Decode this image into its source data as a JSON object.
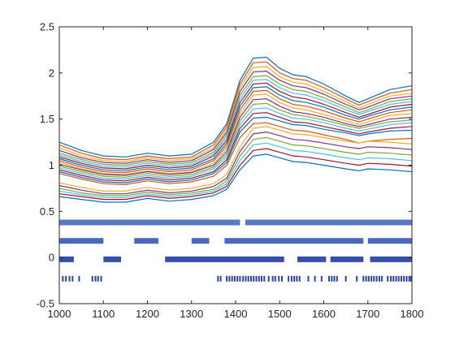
{
  "colors": {
    "axis": "#262626",
    "band1": "#5a78c8",
    "band2": "#4a68bf",
    "band3": "#3550a8",
    "band4": "#2a46a0"
  },
  "chart_data": {
    "type": "line",
    "title": "",
    "xlabel": "",
    "ylabel": "",
    "xlim": [
      1000,
      1800
    ],
    "ylim": [
      -0.5,
      2.5
    ],
    "grid": false,
    "legend": "none",
    "x_ticks": [
      "1000",
      "1100",
      "1200",
      "1300",
      "1400",
      "1500",
      "1600",
      "1700",
      "1800"
    ],
    "y_ticks": [
      "-0.5",
      "0",
      "0.5",
      "1",
      "1.5",
      "2",
      "2.5"
    ],
    "x": [
      1000,
      1050,
      1100,
      1150,
      1200,
      1250,
      1300,
      1350,
      1380,
      1410,
      1440,
      1470,
      1500,
      1530,
      1560,
      1600,
      1650,
      1680,
      1700,
      1750,
      1800
    ],
    "series": [
      {
        "group": "upper",
        "values": [
          1.25,
          1.16,
          1.1,
          1.09,
          1.13,
          1.1,
          1.12,
          1.25,
          1.45,
          1.92,
          2.16,
          2.17,
          2.05,
          1.98,
          1.96,
          1.88,
          1.75,
          1.68,
          1.72,
          1.82,
          1.86
        ]
      },
      {
        "group": "upper",
        "values": [
          1.22,
          1.13,
          1.07,
          1.06,
          1.1,
          1.07,
          1.09,
          1.22,
          1.42,
          1.88,
          2.11,
          2.12,
          2.0,
          1.94,
          1.92,
          1.84,
          1.72,
          1.65,
          1.69,
          1.78,
          1.82
        ]
      },
      {
        "group": "upper",
        "values": [
          1.19,
          1.1,
          1.05,
          1.04,
          1.08,
          1.05,
          1.07,
          1.19,
          1.39,
          1.84,
          2.06,
          2.07,
          1.96,
          1.9,
          1.88,
          1.8,
          1.69,
          1.62,
          1.66,
          1.75,
          1.78
        ]
      },
      {
        "group": "upper",
        "values": [
          1.16,
          1.08,
          1.03,
          1.02,
          1.06,
          1.03,
          1.05,
          1.17,
          1.36,
          1.8,
          2.01,
          2.02,
          1.92,
          1.86,
          1.84,
          1.77,
          1.66,
          1.6,
          1.63,
          1.72,
          1.75
        ]
      },
      {
        "group": "upper",
        "values": [
          1.13,
          1.06,
          1.01,
          1.0,
          1.04,
          1.01,
          1.03,
          1.14,
          1.33,
          1.76,
          1.96,
          1.97,
          1.88,
          1.82,
          1.8,
          1.73,
          1.63,
          1.57,
          1.6,
          1.69,
          1.72
        ]
      },
      {
        "group": "upper",
        "values": [
          1.11,
          1.04,
          0.99,
          0.98,
          1.02,
          0.99,
          1.01,
          1.12,
          1.3,
          1.72,
          1.92,
          1.93,
          1.84,
          1.78,
          1.76,
          1.7,
          1.6,
          1.55,
          1.58,
          1.66,
          1.69
        ]
      },
      {
        "group": "upper",
        "values": [
          1.09,
          1.02,
          0.97,
          0.96,
          1.0,
          0.97,
          0.99,
          1.1,
          1.27,
          1.68,
          1.88,
          1.89,
          1.8,
          1.74,
          1.72,
          1.66,
          1.57,
          1.52,
          1.55,
          1.63,
          1.66
        ]
      },
      {
        "group": "upper",
        "values": [
          1.07,
          1.0,
          0.95,
          0.94,
          0.98,
          0.95,
          0.97,
          1.07,
          1.24,
          1.64,
          1.84,
          1.85,
          1.76,
          1.7,
          1.68,
          1.63,
          1.54,
          1.5,
          1.53,
          1.6,
          1.63
        ]
      },
      {
        "group": "upper",
        "values": [
          1.05,
          0.98,
          0.93,
          0.92,
          0.96,
          0.93,
          0.95,
          1.05,
          1.21,
          1.6,
          1.8,
          1.81,
          1.72,
          1.66,
          1.64,
          1.59,
          1.51,
          1.47,
          1.5,
          1.57,
          1.6
        ]
      },
      {
        "group": "upper",
        "values": [
          1.03,
          0.96,
          0.91,
          0.9,
          0.94,
          0.91,
          0.93,
          1.02,
          1.18,
          1.56,
          1.76,
          1.77,
          1.68,
          1.62,
          1.6,
          1.55,
          1.48,
          1.44,
          1.47,
          1.54,
          1.56
        ]
      },
      {
        "group": "upper",
        "values": [
          1.01,
          0.95,
          0.9,
          0.89,
          0.93,
          0.9,
          0.92,
          1.0,
          1.15,
          1.52,
          1.71,
          1.72,
          1.64,
          1.58,
          1.56,
          1.52,
          1.45,
          1.42,
          1.44,
          1.5,
          1.52
        ]
      },
      {
        "group": "upper",
        "values": [
          0.99,
          0.93,
          0.88,
          0.87,
          0.91,
          0.88,
          0.9,
          0.98,
          1.12,
          1.48,
          1.66,
          1.67,
          1.6,
          1.55,
          1.53,
          1.49,
          1.43,
          1.4,
          1.42,
          1.47,
          1.49
        ]
      },
      {
        "group": "upper",
        "values": [
          0.97,
          0.91,
          0.86,
          0.85,
          0.89,
          0.86,
          0.88,
          0.96,
          1.09,
          1.44,
          1.61,
          1.62,
          1.56,
          1.51,
          1.5,
          1.46,
          1.4,
          1.37,
          1.39,
          1.44,
          1.46
        ]
      },
      {
        "group": "upper",
        "values": [
          0.95,
          0.89,
          0.84,
          0.83,
          0.87,
          0.84,
          0.86,
          0.93,
          1.06,
          1.4,
          1.56,
          1.57,
          1.52,
          1.47,
          1.46,
          1.42,
          1.37,
          1.34,
          1.36,
          1.4,
          1.42
        ]
      },
      {
        "group": "upper",
        "values": [
          0.93,
          0.87,
          0.82,
          0.81,
          0.85,
          0.82,
          0.84,
          0.91,
          1.03,
          1.36,
          1.51,
          1.52,
          1.48,
          1.44,
          1.43,
          1.39,
          1.35,
          1.32,
          1.34,
          1.37,
          1.38
        ]
      },
      {
        "group": "upper",
        "values": [
          0.91,
          0.85,
          0.8,
          0.79,
          0.83,
          0.8,
          0.82,
          0.88,
          1.0,
          1.3,
          1.45,
          1.46,
          1.42,
          1.38,
          1.37,
          1.33,
          1.28,
          1.24,
          1.26,
          1.28,
          1.29
        ]
      },
      {
        "group": "lower",
        "values": [
          0.81,
          0.76,
          0.72,
          0.72,
          0.76,
          0.73,
          0.75,
          0.8,
          0.9,
          1.2,
          1.4,
          1.42,
          1.38,
          1.34,
          1.33,
          1.3,
          1.26,
          1.24,
          1.26,
          1.25,
          1.23
        ]
      },
      {
        "group": "lower",
        "values": [
          0.78,
          0.73,
          0.69,
          0.69,
          0.73,
          0.7,
          0.72,
          0.77,
          0.86,
          1.15,
          1.34,
          1.36,
          1.32,
          1.28,
          1.27,
          1.24,
          1.2,
          1.18,
          1.2,
          1.19,
          1.17
        ]
      },
      {
        "group": "lower",
        "values": [
          0.75,
          0.7,
          0.67,
          0.67,
          0.71,
          0.68,
          0.7,
          0.74,
          0.83,
          1.1,
          1.28,
          1.3,
          1.26,
          1.22,
          1.21,
          1.18,
          1.14,
          1.12,
          1.14,
          1.13,
          1.11
        ]
      },
      {
        "group": "lower",
        "values": [
          0.72,
          0.68,
          0.65,
          0.65,
          0.69,
          0.66,
          0.68,
          0.72,
          0.8,
          1.05,
          1.22,
          1.24,
          1.2,
          1.16,
          1.15,
          1.12,
          1.08,
          1.06,
          1.08,
          1.07,
          1.05
        ]
      },
      {
        "group": "lower",
        "values": [
          0.69,
          0.66,
          0.63,
          0.63,
          0.67,
          0.64,
          0.66,
          0.7,
          0.77,
          1.0,
          1.16,
          1.18,
          1.14,
          1.1,
          1.09,
          1.06,
          1.02,
          1.0,
          1.02,
          1.01,
          0.99
        ]
      },
      {
        "group": "lower",
        "values": [
          0.66,
          0.63,
          0.6,
          0.6,
          0.64,
          0.61,
          0.63,
          0.67,
          0.74,
          0.95,
          1.1,
          1.12,
          1.08,
          1.04,
          1.03,
          1.0,
          0.96,
          0.94,
          0.96,
          0.95,
          0.93
        ]
      }
    ],
    "bands": [
      {
        "y": 0.38,
        "segments": [
          [
            1000,
            1410
          ],
          [
            1422,
            1800
          ]
        ]
      },
      {
        "y": 0.18,
        "segments": [
          [
            1000,
            1100
          ],
          [
            1170,
            1225
          ],
          [
            1300,
            1340
          ],
          [
            1375,
            1690
          ],
          [
            1700,
            1800
          ]
        ]
      },
      {
        "y": -0.02,
        "segments": [
          [
            1000,
            1033
          ],
          [
            1100,
            1140
          ],
          [
            1240,
            1510
          ],
          [
            1540,
            1605
          ],
          [
            1615,
            1690
          ],
          [
            1705,
            1800
          ]
        ]
      },
      {
        "y": -0.23,
        "ticks": [
          1008,
          1015,
          1023,
          1030,
          1045,
          1075,
          1082,
          1088,
          1095,
          1360,
          1366,
          1380,
          1386,
          1392,
          1398,
          1404,
          1410,
          1417,
          1423,
          1429,
          1435,
          1441,
          1447,
          1453,
          1459,
          1465,
          1475,
          1484,
          1490,
          1498,
          1505,
          1520,
          1527,
          1533,
          1539,
          1545,
          1565,
          1580,
          1595,
          1612,
          1618,
          1624,
          1630,
          1650,
          1675,
          1690,
          1696,
          1702,
          1708,
          1714,
          1720,
          1726,
          1732,
          1745,
          1752,
          1758,
          1764,
          1770,
          1776,
          1782,
          1788,
          1794,
          1798
        ]
      }
    ]
  }
}
